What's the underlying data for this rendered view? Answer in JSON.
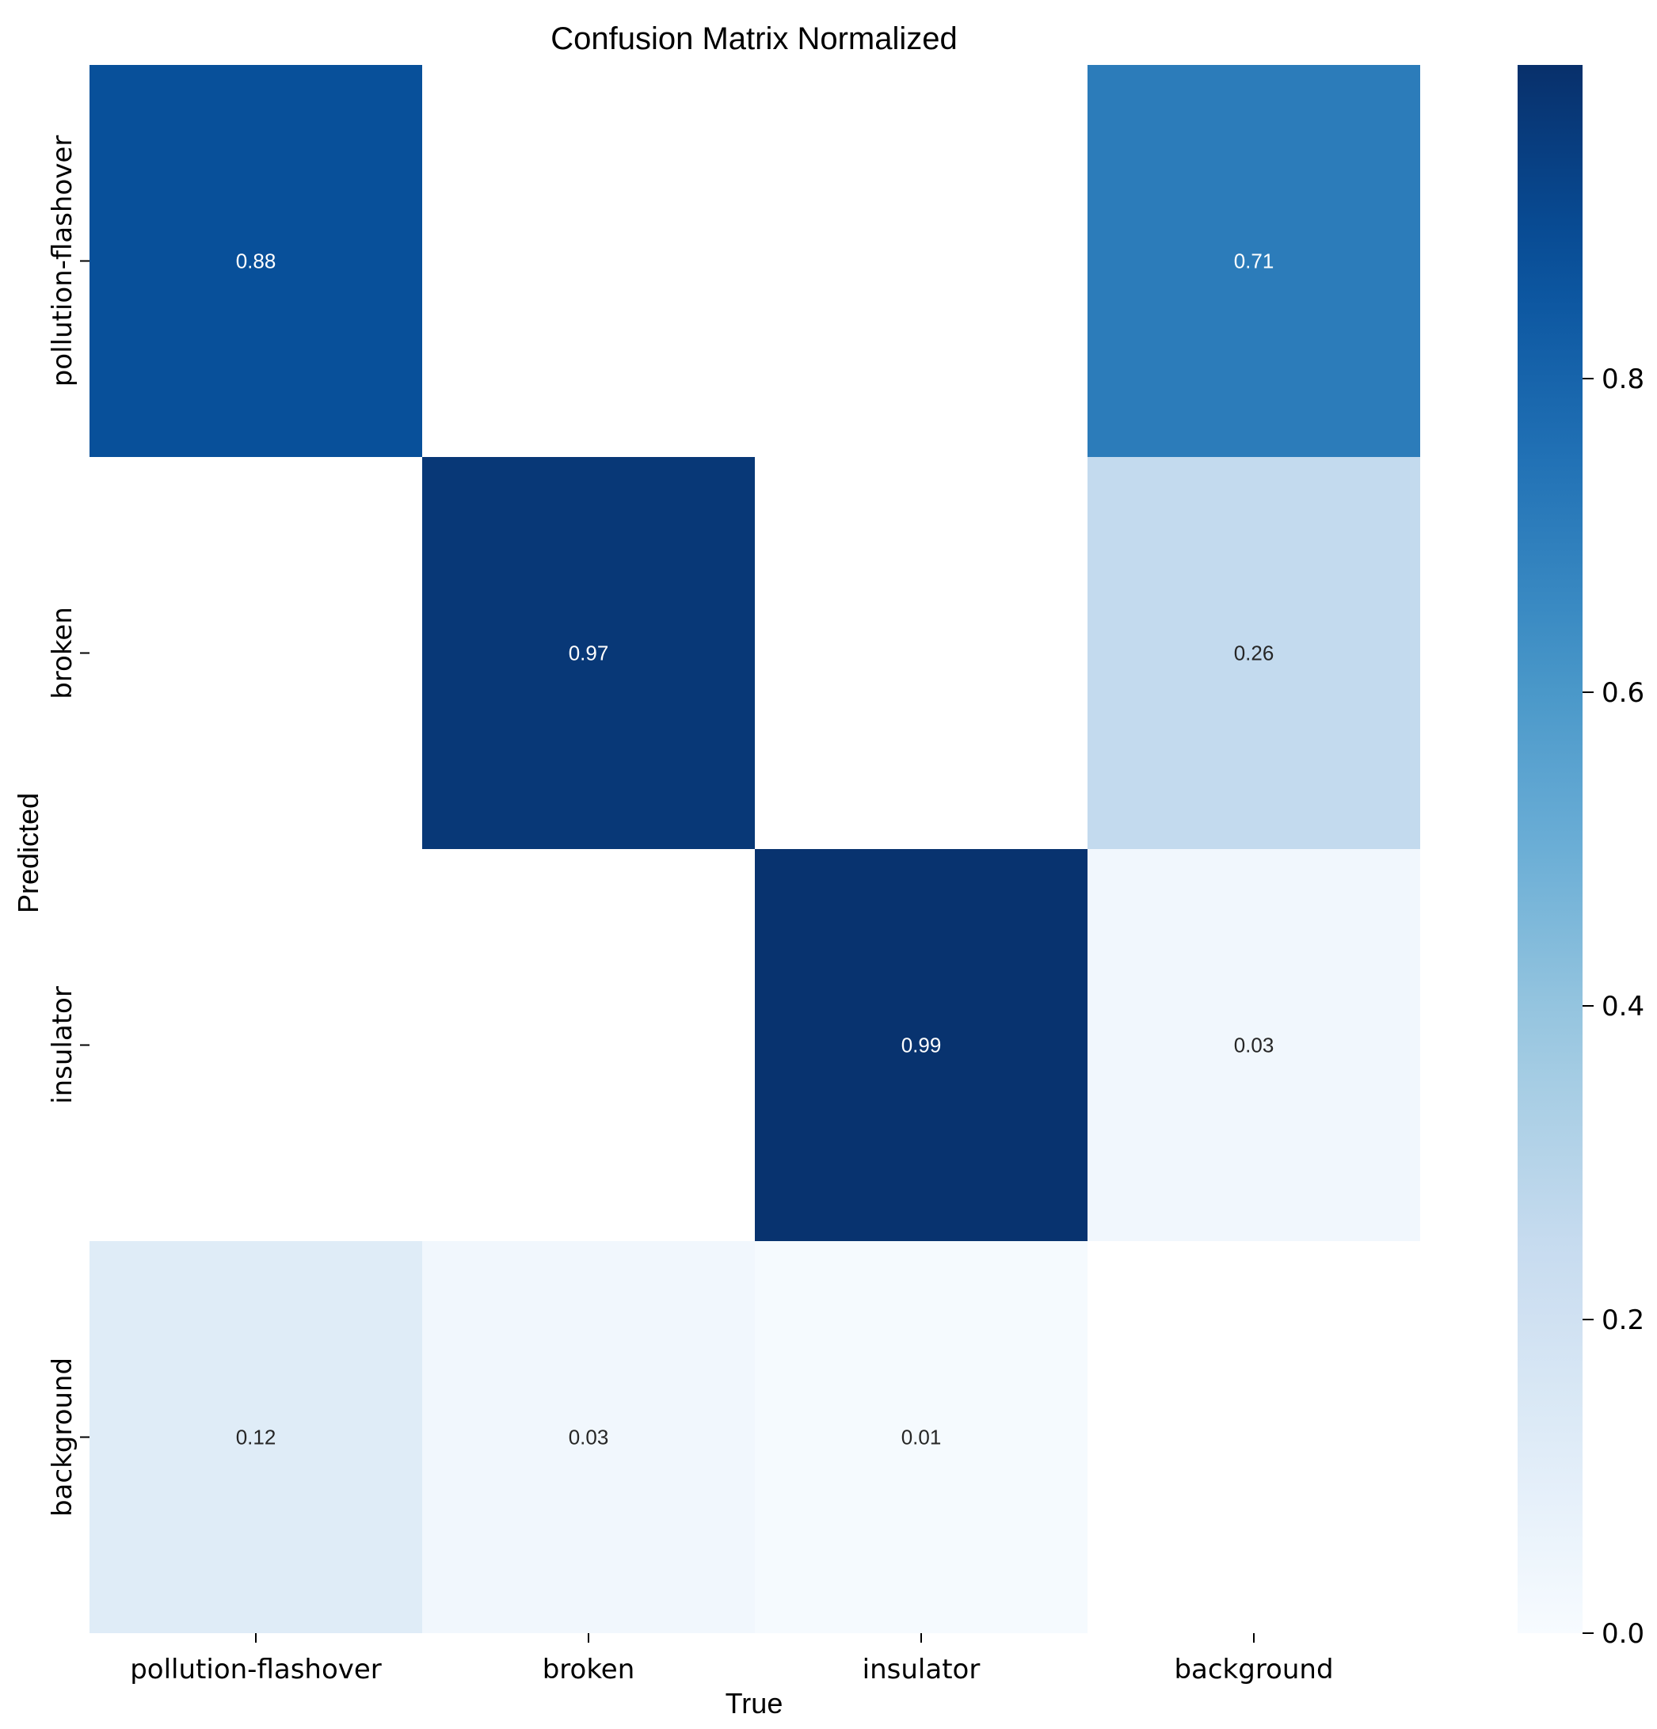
{
  "chart_data": {
    "type": "heatmap",
    "title": "Confusion Matrix Normalized",
    "xlabel": "True",
    "ylabel": "Predicted",
    "x_categories": [
      "pollution-flashover",
      "broken",
      "insulator",
      "background"
    ],
    "y_categories": [
      "pollution-flashover",
      "broken",
      "insulator",
      "background"
    ],
    "values": [
      [
        0.88,
        null,
        null,
        0.71
      ],
      [
        null,
        0.97,
        null,
        0.26
      ],
      [
        null,
        null,
        0.99,
        0.03
      ],
      [
        0.12,
        0.03,
        0.01,
        null
      ]
    ],
    "value_labels": [
      [
        "0.88",
        "",
        "",
        "0.71"
      ],
      [
        "",
        "0.97",
        "",
        "0.26"
      ],
      [
        "",
        "",
        "0.99",
        "0.03"
      ],
      [
        "0.12",
        "0.03",
        "0.01",
        ""
      ]
    ],
    "colorbar": {
      "range": [
        0.0,
        1.0
      ],
      "ticks": [
        0.0,
        0.2,
        0.4,
        0.6,
        0.8
      ],
      "tick_labels": [
        "0.0",
        "0.2",
        "0.4",
        "0.6",
        "0.8"
      ],
      "colormap": "Blues"
    }
  }
}
